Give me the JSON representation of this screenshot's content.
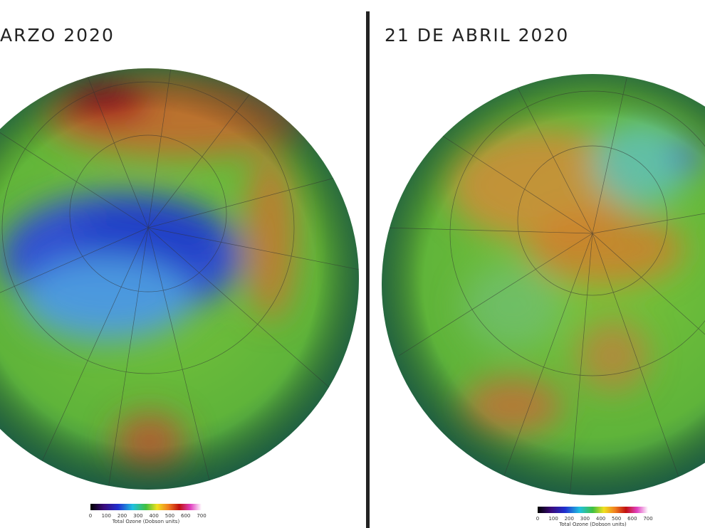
{
  "panels": [
    {
      "title": "ARZO 2020",
      "colorbar": {
        "ticks": [
          0,
          100,
          200,
          300,
          400,
          500,
          600,
          700
        ],
        "label": "Total Ozone (Dobson units)"
      }
    },
    {
      "title": "21 DE ABRIL 2020",
      "colorbar": {
        "ticks": [
          0,
          100,
          200,
          300,
          400,
          500,
          600,
          700
        ],
        "label": "Total Ozone (Dobson units)"
      }
    }
  ]
}
